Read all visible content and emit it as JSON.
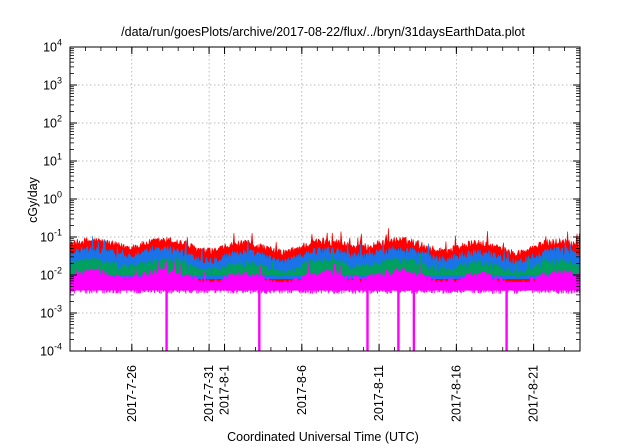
{
  "chart_data": {
    "type": "area",
    "title": "/data/run/goesPlots/archive/2017-08-22/flux/../bryn/31daysEarthData.plot",
    "xlabel": "Coordinated Universal Time (UTC)",
    "ylabel": "cGy/day",
    "yscale": "log",
    "ylim": [
      0.0001,
      10000
    ],
    "xlim": [
      "2017-07-22",
      "2017-08-24"
    ],
    "grid": true,
    "y_ticks": [
      {
        "base": "10",
        "exp": "4"
      },
      {
        "base": "10",
        "exp": "3"
      },
      {
        "base": "10",
        "exp": "2"
      },
      {
        "base": "10",
        "exp": "1"
      },
      {
        "base": "10",
        "exp": "0"
      },
      {
        "base": "10",
        "exp": "-1"
      },
      {
        "base": "10",
        "exp": "-2"
      },
      {
        "base": "10",
        "exp": "-3"
      },
      {
        "base": "10",
        "exp": "-4"
      }
    ],
    "x_ticks": [
      {
        "label": "2017-7-26",
        "date": "2017-07-26"
      },
      {
        "label": "2017-7-31",
        "date": "2017-07-31"
      },
      {
        "label": "2017-8-1",
        "date": "2017-08-01"
      },
      {
        "label": "2017-8-6",
        "date": "2017-08-06"
      },
      {
        "label": "2017-8-11",
        "date": "2017-08-11"
      },
      {
        "label": "2017-8-16",
        "date": "2017-08-16"
      },
      {
        "label": "2017-8-21",
        "date": "2017-08-21"
      }
    ],
    "series": [
      {
        "color": "#ff0000",
        "typical_max": 0.06
      },
      {
        "color": "#1a73e8",
        "typical_max": 0.035
      },
      {
        "color": "#00a060",
        "typical_max": 0.018
      },
      {
        "color": "#ff00ff",
        "typical_max": 0.009
      }
    ],
    "dropouts": [
      "2017-07-28",
      "2017-08-03",
      "2017-08-10",
      "2017-08-12",
      "2017-08-13",
      "2017-08-19"
    ]
  }
}
